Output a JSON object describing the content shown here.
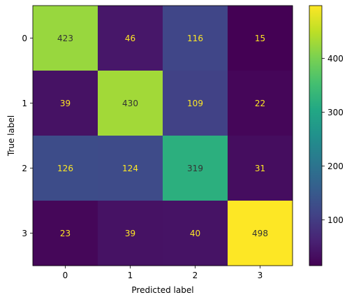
{
  "chart_data": {
    "type": "heatmap",
    "title": "",
    "xlabel": "Predicted label",
    "ylabel": "True label",
    "x_categories": [
      "0",
      "1",
      "2",
      "3"
    ],
    "y_categories": [
      "0",
      "1",
      "2",
      "3"
    ],
    "values": [
      [
        423,
        46,
        116,
        15
      ],
      [
        39,
        430,
        109,
        22
      ],
      [
        126,
        124,
        319,
        31
      ],
      [
        23,
        39,
        40,
        498
      ]
    ],
    "colormap": "viridis",
    "colorbar": {
      "ticks": [
        100,
        200,
        300,
        400
      ],
      "range": [
        15,
        498
      ]
    },
    "text_colors": {
      "light": "#fde725",
      "dark": "#333333"
    }
  }
}
